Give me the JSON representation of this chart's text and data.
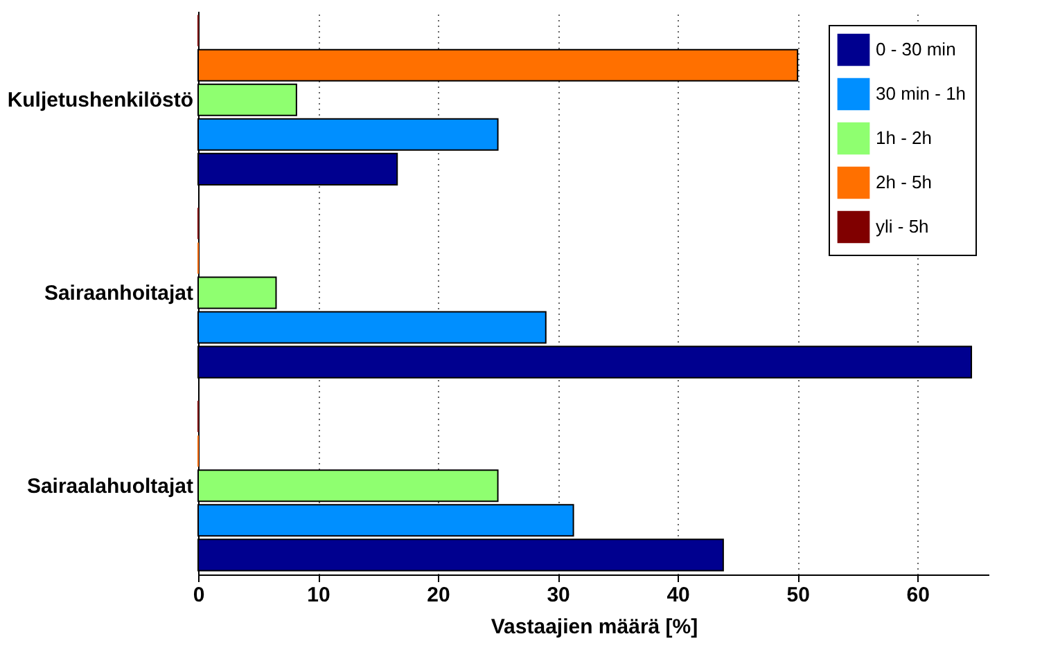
{
  "chart_data": {
    "type": "bar",
    "orientation": "horizontal",
    "categories": [
      "Kuljetushenkilöstö",
      "Sairaanhoitajat",
      "Sairaalahuoltajat"
    ],
    "series": [
      {
        "name": "0 - 30 min",
        "color": "#00008f",
        "values": [
          16.6,
          64.5,
          43.8
        ]
      },
      {
        "name": "30 min - 1h",
        "color": "#008fff",
        "values": [
          25,
          29,
          31.3
        ]
      },
      {
        "name": "1h - 2h",
        "color": "#8fff70",
        "values": [
          8.2,
          6.5,
          25
        ]
      },
      {
        "name": "2h - 5h",
        "color": "#ff7000",
        "values": [
          50,
          0,
          0
        ]
      },
      {
        "name": "yli - 5h",
        "color": "#800000",
        "values": [
          0,
          0,
          0
        ]
      }
    ],
    "xlabel": "Vastaajien määrä [%]",
    "xlim": [
      0,
      66
    ],
    "xticks": [
      0,
      10,
      20,
      30,
      40,
      50,
      60
    ],
    "grid": "x",
    "legend": "top right"
  }
}
